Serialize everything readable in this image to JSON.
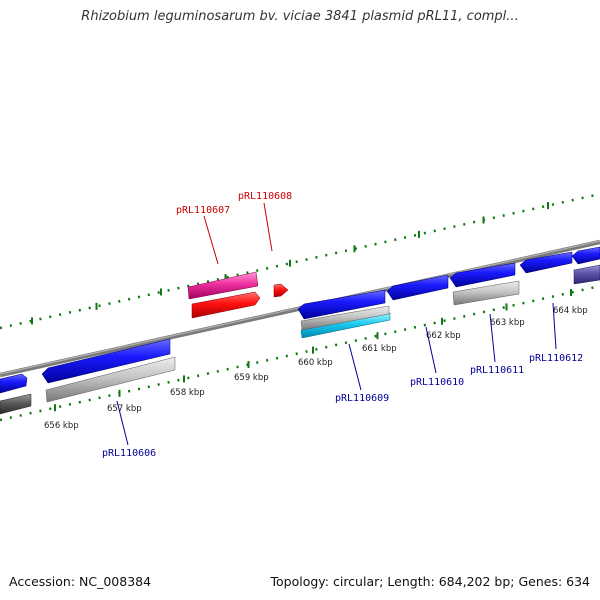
{
  "title": "Rhizobium leguminosarum bv. viciae 3841 plasmid pRL11, compl...",
  "footer": {
    "accession": "Accession: NC_008384",
    "summary": "Topology: circular; Length: 684,202 bp; Genes: 634"
  },
  "colors": {
    "backbone": "#8a8a8a",
    "tick": "#117711",
    "forward_gene": "#1a1aff",
    "reverse_gene": "#ff1111",
    "forward_label": "#000099",
    "reverse_label": "#cc0000"
  },
  "ticks": [
    {
      "label": "656 kbp"
    },
    {
      "label": "657 kbp"
    },
    {
      "label": "658 kbp"
    },
    {
      "label": "659 kbp"
    },
    {
      "label": "660 kbp"
    },
    {
      "label": "661 kbp"
    },
    {
      "label": "662 kbp"
    },
    {
      "label": "663 kbp"
    },
    {
      "label": "664 kbp"
    }
  ],
  "gene_labels": [
    {
      "name": "pRL110606",
      "strand": "forward"
    },
    {
      "name": "pRL110607",
      "strand": "reverse"
    },
    {
      "name": "pRL110608",
      "strand": "reverse"
    },
    {
      "name": "pRL110609",
      "strand": "forward"
    },
    {
      "name": "pRL110610",
      "strand": "forward"
    },
    {
      "name": "pRL110611",
      "strand": "forward"
    },
    {
      "name": "pRL110612",
      "strand": "forward"
    }
  ]
}
